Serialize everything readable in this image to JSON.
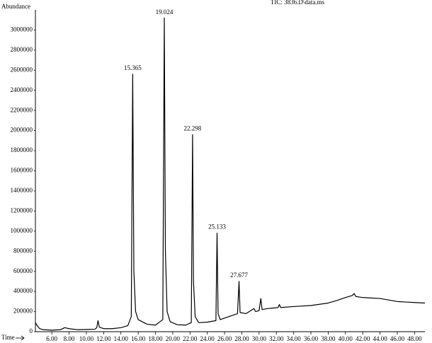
{
  "chart_data": {
    "type": "line",
    "title": "TIC: 3836.D\\data.ms",
    "y_label": "Abundance",
    "x_label": "Time",
    "color": "#000000",
    "xlim": [
      4.1,
      49.2
    ],
    "ylim": [
      0,
      3200000
    ],
    "yticks": [
      0,
      200000,
      400000,
      600000,
      800000,
      1000000,
      1200000,
      1400000,
      1600000,
      1800000,
      2000000,
      2200000,
      2400000,
      2600000,
      2800000,
      3000000
    ],
    "xticks": [
      {
        "value": 6,
        "label": "6.00"
      },
      {
        "value": 8,
        "label": "8.00"
      },
      {
        "value": 10,
        "label": "10.00"
      },
      {
        "value": 12,
        "label": "12.00"
      },
      {
        "value": 14,
        "label": "14.00"
      },
      {
        "value": 16,
        "label": "16.00"
      },
      {
        "value": 18,
        "label": "18.00"
      },
      {
        "value": 20,
        "label": "20.00"
      },
      {
        "value": 22,
        "label": "22.00"
      },
      {
        "value": 24,
        "label": "24.00"
      },
      {
        "value": 26,
        "label": "26.00"
      },
      {
        "value": 28,
        "label": "28.00"
      },
      {
        "value": 30,
        "label": "30.00"
      },
      {
        "value": 32,
        "label": "32.00"
      },
      {
        "value": 34,
        "label": "34.00"
      },
      {
        "value": 36,
        "label": "36.00"
      },
      {
        "value": 38,
        "label": "38.00"
      },
      {
        "value": 40,
        "label": "40.00"
      },
      {
        "value": 42,
        "label": "42.00"
      },
      {
        "value": 44,
        "label": "44.00"
      },
      {
        "value": 46,
        "label": "46.00"
      },
      {
        "value": 48,
        "label": "48.00"
      }
    ],
    "peak_labels": [
      15.365,
      19.024,
      22.298,
      25.133,
      27.677
    ],
    "x": [
      4.1,
      4.3,
      4.6,
      5.0,
      6.0,
      7.0,
      7.5,
      8.0,
      9.0,
      10.0,
      11.0,
      11.2,
      11.35,
      11.5,
      12.0,
      13.0,
      14.0,
      14.8,
      15.2,
      15.365,
      15.5,
      15.7,
      16.0,
      17.0,
      18.0,
      18.85,
      19.024,
      19.15,
      19.35,
      19.7,
      20.5,
      21.5,
      22.15,
      22.298,
      22.4,
      22.6,
      23.0,
      24.0,
      25.0,
      25.133,
      25.25,
      25.5,
      26.5,
      27.5,
      27.677,
      27.8,
      28.5,
      29.4,
      29.6,
      30.0,
      30.2,
      30.35,
      31.0,
      32.2,
      32.35,
      32.5,
      34.0,
      36.0,
      38.0,
      39.0,
      40.0,
      40.8,
      41.0,
      41.2,
      42.0,
      43.0,
      44.0,
      45.0,
      46.0,
      47.0,
      48.0,
      49.2
    ],
    "values": [
      90000,
      60000,
      30000,
      20000,
      15000,
      20000,
      40000,
      30000,
      20000,
      22000,
      25000,
      40000,
      110000,
      45000,
      30000,
      30000,
      40000,
      60000,
      150000,
      2560000,
      600000,
      200000,
      120000,
      75000,
      65000,
      120000,
      3120000,
      800000,
      200000,
      100000,
      70000,
      65000,
      90000,
      1960000,
      500000,
      150000,
      90000,
      95000,
      110000,
      980000,
      180000,
      120000,
      150000,
      180000,
      500000,
      190000,
      180000,
      230000,
      200000,
      210000,
      330000,
      220000,
      230000,
      240000,
      270000,
      240000,
      250000,
      260000,
      285000,
      310000,
      340000,
      360000,
      380000,
      350000,
      340000,
      335000,
      330000,
      315000,
      300000,
      295000,
      290000,
      285000
    ]
  }
}
